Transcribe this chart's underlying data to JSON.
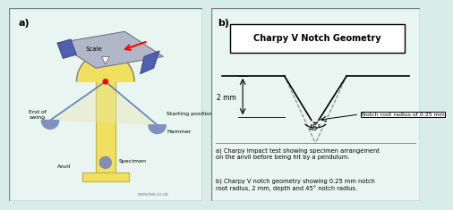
{
  "bg_color": "#d8ede8",
  "left_panel_bg": "#e8f5f0",
  "right_panel_bg": "#e8f5f0",
  "title": "Charpy V Notch Geometry",
  "notch_angle_label": "45°",
  "notch_radius_label": "Notch root radius of 0.25 mm",
  "depth_label": "2 mm",
  "caption_a": "a) Charpy Impact test showing specimen arrangement\non the anvil before being hit by a pendulum.",
  "caption_b": "b) Charpy V notch geometry showing 0.25 mm notch\nroot radius, 2 mm, depth and 45° notch radius.",
  "label_a": "a)",
  "label_b": "b)",
  "watermark": "www.twi.co.uk",
  "specimen_label": "Specimen",
  "anvil_label": "Anvil",
  "hammer_label": "Hammer",
  "scale_label": "Scale",
  "starting_label": "Starting position",
  "end_swing_label": "End of\nswing"
}
